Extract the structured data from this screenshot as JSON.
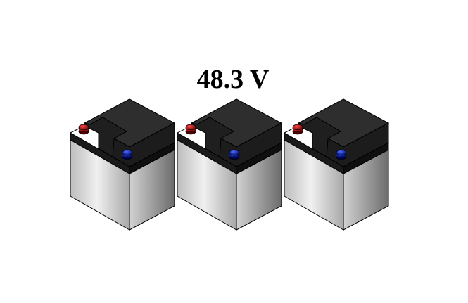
{
  "voltage_label": "48.3 V",
  "battery_count": 3,
  "colors": {
    "lid_top": "#2b2b2b",
    "lid_side": "#161616",
    "case_front_light": "#f2f2f2",
    "case_front_dark": "#8f8f8f",
    "case_side_light": "#cfcfcf",
    "case_side_dark": "#6a6a6a",
    "terminal_positive": "#9a0000",
    "terminal_negative": "#0a1ea8"
  },
  "terminals": [
    "positive-terminal-icon",
    "negative-terminal-icon"
  ]
}
